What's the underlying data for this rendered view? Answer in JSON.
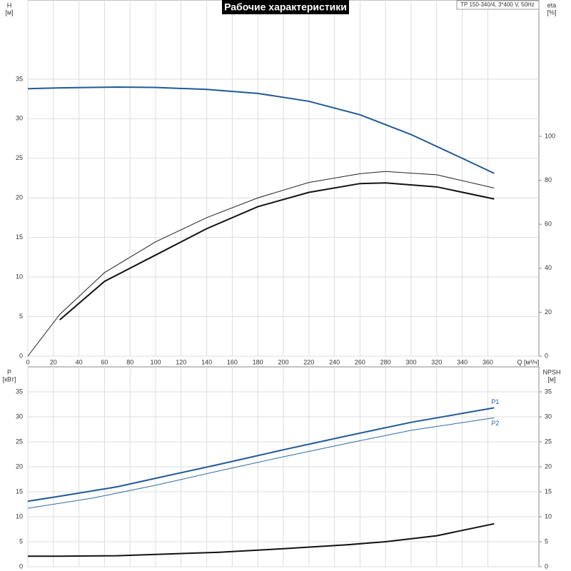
{
  "title": "Рабочие характеристики",
  "model": "TP 150-340/4, 3*400 V, 50Hz",
  "chart_data": [
    {
      "type": "line",
      "ylabel": "H",
      "yunit": "[м]",
      "y2label": "eta",
      "y2unit": "[%]",
      "xlabel": "Q [м³/ч]",
      "xlim": [
        0,
        400
      ],
      "xticks": [
        0,
        20,
        40,
        60,
        80,
        100,
        120,
        140,
        160,
        180,
        200,
        220,
        240,
        260,
        280,
        300,
        320,
        340,
        360
      ],
      "ylim": [
        0,
        45
      ],
      "yticks": [
        0,
        5,
        10,
        15,
        20,
        25,
        30,
        35
      ],
      "y2lim": [
        0,
        162
      ],
      "y2ticks": [
        0,
        20,
        40,
        60,
        80,
        100
      ],
      "grid": true,
      "xtick_labels": true,
      "series": [
        {
          "color": "#1f5a96",
          "width": 2,
          "axis": "y",
          "x": [
            0,
            25,
            70,
            100,
            140,
            180,
            220,
            260,
            300,
            340,
            365
          ],
          "values": [
            33.8,
            33.9,
            34,
            33.95,
            33.7,
            33.2,
            32.2,
            30.5,
            28,
            25,
            23.1
          ]
        },
        {
          "color": "#222222",
          "width": 1,
          "axis": "y2",
          "x": [
            0,
            25,
            60,
            100,
            140,
            180,
            220,
            260,
            280,
            320,
            365
          ],
          "values": [
            0,
            19,
            38,
            52,
            63,
            72,
            79,
            83,
            84,
            82.5,
            76.5
          ]
        },
        {
          "color": "#111111",
          "width": 2,
          "axis": "y2",
          "x": [
            25,
            60,
            100,
            140,
            180,
            220,
            260,
            280,
            320,
            365
          ],
          "values": [
            16.5,
            34,
            46,
            58,
            68,
            74.5,
            78.5,
            78.8,
            77,
            71.5
          ]
        }
      ]
    },
    {
      "type": "line",
      "ylabel": "P",
      "yunit": "[кВт]",
      "y2label": "NPSH",
      "y2unit": "[м]",
      "xlim": [
        0,
        400
      ],
      "xticks": [
        0,
        20,
        40,
        60,
        80,
        100,
        120,
        140,
        160,
        180,
        200,
        220,
        240,
        260,
        280,
        300,
        320,
        340,
        360
      ],
      "ylim": [
        0,
        40
      ],
      "yticks": [
        0,
        5,
        10,
        15,
        20,
        25,
        30,
        35
      ],
      "y2lim": [
        0,
        40
      ],
      "y2ticks": [
        0,
        5,
        10,
        15,
        20,
        25,
        30,
        35
      ],
      "grid": true,
      "xtick_labels": false,
      "series": [
        {
          "name": "P1",
          "label_pos": "above",
          "color": "#1f5a96",
          "width": 2,
          "axis": "y",
          "x": [
            0,
            25,
            70,
            100,
            150,
            200,
            250,
            300,
            365
          ],
          "values": [
            13.1,
            14.1,
            16,
            17.7,
            20.5,
            23.4,
            26.2,
            28.9,
            31.8
          ]
        },
        {
          "name": "P2",
          "label_pos": "below",
          "color": "#2f6aa6",
          "width": 1,
          "axis": "y",
          "x": [
            0,
            50,
            100,
            150,
            200,
            250,
            300,
            365
          ],
          "values": [
            11.7,
            13.7,
            16.3,
            19.2,
            22,
            24.7,
            27.3,
            29.8
          ]
        },
        {
          "color": "#111111",
          "width": 2,
          "axis": "y2",
          "x": [
            0,
            25,
            70,
            150,
            200,
            250,
            280,
            320,
            365
          ],
          "values": [
            2.1,
            2.1,
            2.2,
            2.9,
            3.6,
            4.4,
            5,
            6.2,
            8.6
          ]
        }
      ]
    }
  ]
}
